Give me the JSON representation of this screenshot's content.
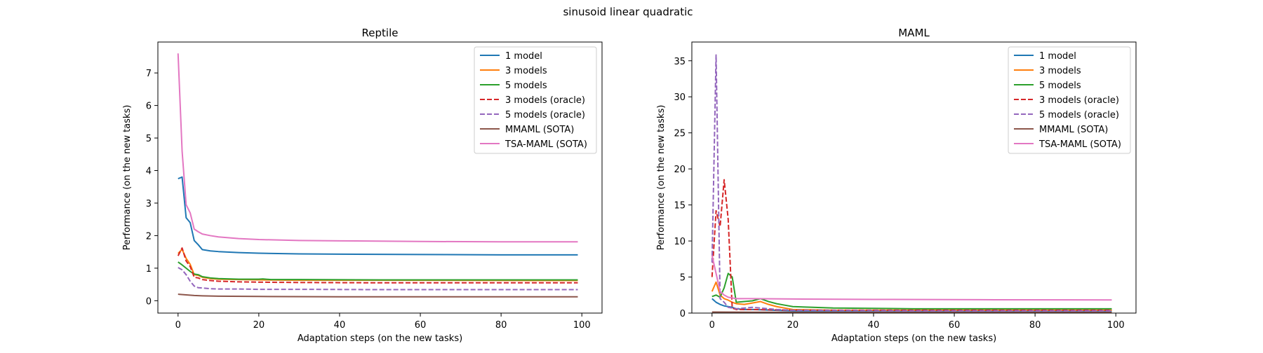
{
  "suptitle": "sinusoid linear quadratic",
  "chart_data": [
    {
      "type": "line",
      "title": "Reptile",
      "xlabel": "Adaptation steps (on the new tasks)",
      "ylabel": "Performance (on the new tasks)",
      "xlim": [
        -5,
        105
      ],
      "ylim": [
        -0.38,
        7.95
      ],
      "xticks": [
        0,
        20,
        40,
        60,
        80,
        100
      ],
      "yticks": [
        0,
        1,
        2,
        3,
        4,
        5,
        6,
        7
      ],
      "legend": "upper right",
      "series": [
        {
          "name": "1 model",
          "color": "#1f77b4",
          "dash": "solid",
          "points": [
            [
              0,
              3.75
            ],
            [
              1,
              3.8
            ],
            [
              2,
              2.55
            ],
            [
              3,
              2.4
            ],
            [
              4,
              1.85
            ],
            [
              5,
              1.72
            ],
            [
              6,
              1.57
            ],
            [
              8,
              1.53
            ],
            [
              10,
              1.51
            ],
            [
              15,
              1.48
            ],
            [
              20,
              1.46
            ],
            [
              30,
              1.44
            ],
            [
              40,
              1.43
            ],
            [
              60,
              1.42
            ],
            [
              80,
              1.41
            ],
            [
              99,
              1.41
            ]
          ]
        },
        {
          "name": "3 models",
          "color": "#ff7f0e",
          "dash": "solid",
          "points": [
            [
              0,
              1.45
            ],
            [
              1,
              1.58
            ],
            [
              2,
              1.3
            ],
            [
              3,
              1.12
            ],
            [
              4,
              0.8
            ],
            [
              5,
              0.78
            ],
            [
              6,
              0.72
            ],
            [
              8,
              0.68
            ],
            [
              10,
              0.66
            ],
            [
              15,
              0.65
            ],
            [
              20,
              0.64
            ],
            [
              30,
              0.63
            ],
            [
              50,
              0.63
            ],
            [
              99,
              0.62
            ]
          ]
        },
        {
          "name": "5 models",
          "color": "#2ca02c",
          "dash": "solid",
          "points": [
            [
              0,
              1.19
            ],
            [
              1,
              1.1
            ],
            [
              2,
              1.0
            ],
            [
              3,
              0.9
            ],
            [
              4,
              0.82
            ],
            [
              5,
              0.8
            ],
            [
              6,
              0.74
            ],
            [
              8,
              0.7
            ],
            [
              10,
              0.68
            ],
            [
              15,
              0.66
            ],
            [
              20,
              0.66
            ],
            [
              21,
              0.67
            ],
            [
              23,
              0.65
            ],
            [
              30,
              0.65
            ],
            [
              50,
              0.64
            ],
            [
              99,
              0.64
            ]
          ]
        },
        {
          "name": "3 models (oracle)",
          "color": "#d62728",
          "dash": "dashed",
          "points": [
            [
              0,
              1.38
            ],
            [
              1,
              1.62
            ],
            [
              2,
              1.22
            ],
            [
              3,
              1.05
            ],
            [
              4,
              0.72
            ],
            [
              5,
              0.7
            ],
            [
              6,
              0.65
            ],
            [
              8,
              0.62
            ],
            [
              10,
              0.6
            ],
            [
              15,
              0.58
            ],
            [
              20,
              0.57
            ],
            [
              30,
              0.56
            ],
            [
              50,
              0.55
            ],
            [
              99,
              0.55
            ]
          ]
        },
        {
          "name": "5 models (oracle)",
          "color": "#9467bd",
          "dash": "dashed",
          "points": [
            [
              0,
              1.02
            ],
            [
              1,
              0.95
            ],
            [
              2,
              0.8
            ],
            [
              3,
              0.6
            ],
            [
              4,
              0.45
            ],
            [
              5,
              0.4
            ],
            [
              6,
              0.39
            ],
            [
              8,
              0.37
            ],
            [
              10,
              0.36
            ],
            [
              15,
              0.36
            ],
            [
              20,
              0.35
            ],
            [
              30,
              0.35
            ],
            [
              50,
              0.34
            ],
            [
              99,
              0.34
            ]
          ]
        },
        {
          "name": "MMAML (SOTA)",
          "color": "#8c564b",
          "dash": "solid",
          "points": [
            [
              0,
              0.2
            ],
            [
              2,
              0.18
            ],
            [
              4,
              0.16
            ],
            [
              6,
              0.15
            ],
            [
              10,
              0.14
            ],
            [
              20,
              0.13
            ],
            [
              40,
              0.12
            ],
            [
              70,
              0.12
            ],
            [
              99,
              0.12
            ]
          ]
        },
        {
          "name": "TSA-MAML (SOTA)",
          "color": "#e377c2",
          "dash": "solid",
          "points": [
            [
              0,
              7.6
            ],
            [
              1,
              4.6
            ],
            [
              2,
              2.95
            ],
            [
              3,
              2.7
            ],
            [
              4,
              2.2
            ],
            [
              5,
              2.12
            ],
            [
              6,
              2.05
            ],
            [
              8,
              2.0
            ],
            [
              10,
              1.96
            ],
            [
              15,
              1.91
            ],
            [
              20,
              1.88
            ],
            [
              30,
              1.85
            ],
            [
              40,
              1.84
            ],
            [
              60,
              1.82
            ],
            [
              80,
              1.81
            ],
            [
              99,
              1.81
            ]
          ]
        }
      ]
    },
    {
      "type": "line",
      "title": "MAML",
      "xlabel": "Adaptation steps (on the new tasks)",
      "ylabel": "Performance (on the new tasks)",
      "xlim": [
        -5,
        105
      ],
      "ylim": [
        0,
        37.6
      ],
      "xticks": [
        0,
        20,
        40,
        60,
        80,
        100
      ],
      "yticks": [
        0,
        5,
        10,
        15,
        20,
        25,
        30,
        35
      ],
      "legend": "upper right",
      "series": [
        {
          "name": "1 model",
          "color": "#1f77b4",
          "dash": "solid",
          "points": [
            [
              0,
              2.0
            ],
            [
              1,
              1.5
            ],
            [
              2,
              1.2
            ],
            [
              3,
              1.0
            ],
            [
              4,
              0.9
            ],
            [
              5,
              0.8
            ],
            [
              6,
              0.6
            ],
            [
              8,
              0.5
            ],
            [
              10,
              0.5
            ],
            [
              15,
              0.4
            ],
            [
              20,
              0.3
            ],
            [
              40,
              0.3
            ],
            [
              99,
              0.3
            ]
          ]
        },
        {
          "name": "3 models",
          "color": "#ff7f0e",
          "dash": "solid",
          "points": [
            [
              0,
              3.0
            ],
            [
              1,
              4.3
            ],
            [
              2,
              2.5
            ],
            [
              3,
              2.0
            ],
            [
              4,
              1.8
            ],
            [
              5,
              1.5
            ],
            [
              6,
              1.3
            ],
            [
              8,
              1.2
            ],
            [
              10,
              1.4
            ],
            [
              12,
              1.6
            ],
            [
              14,
              1.2
            ],
            [
              16,
              0.9
            ],
            [
              18,
              0.7
            ],
            [
              20,
              0.5
            ],
            [
              30,
              0.4
            ],
            [
              50,
              0.4
            ],
            [
              99,
              0.4
            ]
          ]
        },
        {
          "name": "5 models",
          "color": "#2ca02c",
          "dash": "solid",
          "points": [
            [
              0,
              2.3
            ],
            [
              1,
              2.5
            ],
            [
              2,
              2.2
            ],
            [
              3,
              3.5
            ],
            [
              4,
              5.5
            ],
            [
              5,
              5.0
            ],
            [
              6,
              1.5
            ],
            [
              8,
              1.6
            ],
            [
              10,
              1.7
            ],
            [
              12,
              2.0
            ],
            [
              14,
              1.6
            ],
            [
              16,
              1.3
            ],
            [
              18,
              1.1
            ],
            [
              20,
              0.9
            ],
            [
              25,
              0.8
            ],
            [
              30,
              0.7
            ],
            [
              50,
              0.6
            ],
            [
              99,
              0.6
            ]
          ]
        },
        {
          "name": "3 models (oracle)",
          "color": "#d62728",
          "dash": "dashed",
          "points": [
            [
              0,
              5.0
            ],
            [
              1,
              14.2
            ],
            [
              2,
              12.0
            ],
            [
              3,
              18.5
            ],
            [
              4,
              13.0
            ],
            [
              5,
              0.7
            ],
            [
              6,
              0.5
            ],
            [
              10,
              0.5
            ],
            [
              20,
              0.4
            ],
            [
              50,
              0.4
            ],
            [
              99,
              0.4
            ]
          ]
        },
        {
          "name": "5 models (oracle)",
          "color": "#9467bd",
          "dash": "dashed",
          "points": [
            [
              0,
              7.0
            ],
            [
              1,
              35.8
            ],
            [
              2,
              2.0
            ],
            [
              3,
              1.5
            ],
            [
              4,
              0.8
            ],
            [
              5,
              0.7
            ],
            [
              6,
              0.6
            ],
            [
              10,
              0.8
            ],
            [
              12,
              0.7
            ],
            [
              16,
              0.5
            ],
            [
              20,
              0.4
            ],
            [
              50,
              0.3
            ],
            [
              99,
              0.3
            ]
          ]
        },
        {
          "name": "MMAML (SOTA)",
          "color": "#8c564b",
          "dash": "solid",
          "points": [
            [
              0,
              0.15
            ],
            [
              10,
              0.12
            ],
            [
              50,
              0.1
            ],
            [
              99,
              0.1
            ]
          ]
        },
        {
          "name": "TSA-MAML (SOTA)",
          "color": "#e377c2",
          "dash": "solid",
          "points": [
            [
              0,
              8.0
            ],
            [
              1,
              5.5
            ],
            [
              2,
              3.0
            ],
            [
              3,
              2.5
            ],
            [
              4,
              2.2
            ],
            [
              5,
              2.1
            ],
            [
              6,
              2.0
            ],
            [
              10,
              2.0
            ],
            [
              20,
              1.95
            ],
            [
              40,
              1.9
            ],
            [
              70,
              1.85
            ],
            [
              99,
              1.82
            ]
          ]
        }
      ]
    }
  ]
}
